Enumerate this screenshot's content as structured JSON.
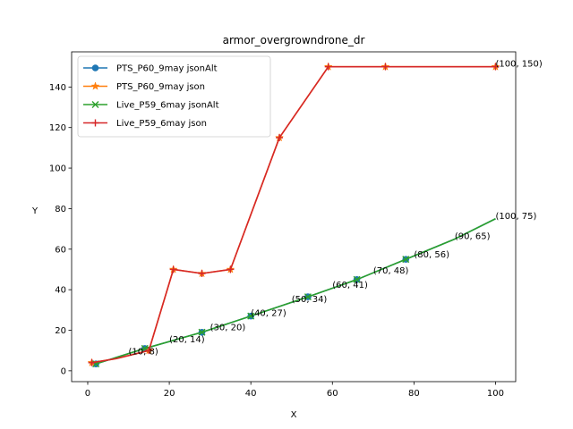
{
  "chart_data": {
    "type": "line",
    "title": "armor_overgrowndrone_dr",
    "xlabel": "X",
    "ylabel": "Y",
    "xlim": [
      -3.95,
      104.95
    ],
    "ylim": [
      -5.35,
      157.35
    ],
    "xticks": [
      0,
      20,
      40,
      60,
      80,
      100
    ],
    "yticks": [
      0,
      20,
      40,
      60,
      80,
      100,
      120,
      140
    ],
    "grid": false,
    "legend_position": "top-left",
    "series": [
      {
        "name": "PTS_P60_9may jsonAlt",
        "color": "#1f77b4",
        "marker": "circle",
        "x": [
          2,
          14,
          28,
          40,
          54,
          66,
          78,
          90,
          100
        ],
        "y": [
          3.4,
          11,
          19,
          27,
          36.5,
          45,
          55,
          65,
          75
        ],
        "markers": [
          [
            2,
            3.4
          ],
          [
            14,
            11
          ],
          [
            28,
            19
          ],
          [
            40,
            27
          ],
          [
            54,
            36.5
          ],
          [
            66,
            45
          ],
          [
            78,
            55
          ]
        ]
      },
      {
        "name": "PTS_P60_9may json",
        "color": "#ff7f0e",
        "marker": "star",
        "x": [
          1,
          7,
          15,
          21,
          28,
          35,
          47,
          59,
          73,
          100
        ],
        "y": [
          4,
          6,
          10,
          50,
          48,
          50,
          115,
          150,
          150,
          150
        ],
        "markers": [
          [
            1,
            4
          ],
          [
            15,
            10
          ],
          [
            21,
            50
          ],
          [
            28,
            48
          ],
          [
            35,
            50
          ],
          [
            47,
            115
          ],
          [
            59,
            150
          ],
          [
            73,
            150
          ],
          [
            100,
            150
          ]
        ]
      },
      {
        "name": "Live_P59_6may jsonAlt",
        "color": "#2ca02c",
        "marker": "x",
        "x": [
          2,
          14,
          28,
          40,
          54,
          66,
          78,
          90,
          100
        ],
        "y": [
          3.4,
          11,
          19,
          27,
          36.5,
          45,
          55,
          65,
          75
        ],
        "markers": [
          [
            2,
            3.4
          ],
          [
            14,
            11
          ],
          [
            28,
            19
          ],
          [
            40,
            27
          ],
          [
            54,
            36.5
          ],
          [
            66,
            45
          ],
          [
            78,
            55
          ]
        ]
      },
      {
        "name": "Live_P59_6may json",
        "color": "#d62728",
        "marker": "plus",
        "x": [
          1,
          7,
          15,
          21,
          28,
          35,
          47,
          59,
          73,
          100
        ],
        "y": [
          4,
          6,
          10,
          50,
          48,
          50,
          115,
          150,
          150,
          150
        ],
        "markers": [
          [
            1,
            4
          ],
          [
            15,
            10
          ],
          [
            21,
            50
          ],
          [
            28,
            48
          ],
          [
            35,
            50
          ],
          [
            47,
            115
          ],
          [
            59,
            150
          ],
          [
            73,
            150
          ],
          [
            100,
            150
          ]
        ]
      }
    ],
    "annotations": [
      {
        "text": "(10, 8)",
        "x": 10,
        "y": 8
      },
      {
        "text": "(20, 14)",
        "x": 20,
        "y": 14
      },
      {
        "text": "(30, 20)",
        "x": 30,
        "y": 20
      },
      {
        "text": "(40, 27)",
        "x": 40,
        "y": 27
      },
      {
        "text": "(50, 34)",
        "x": 50,
        "y": 34
      },
      {
        "text": "(60, 41)",
        "x": 60,
        "y": 41
      },
      {
        "text": "(70, 48)",
        "x": 70,
        "y": 48
      },
      {
        "text": "(80, 56)",
        "x": 80,
        "y": 56
      },
      {
        "text": "(90, 65)",
        "x": 90,
        "y": 65
      },
      {
        "text": "(100, 75)",
        "x": 100,
        "y": 75
      },
      {
        "text": "(100, 150)",
        "x": 100,
        "y": 150
      }
    ]
  }
}
